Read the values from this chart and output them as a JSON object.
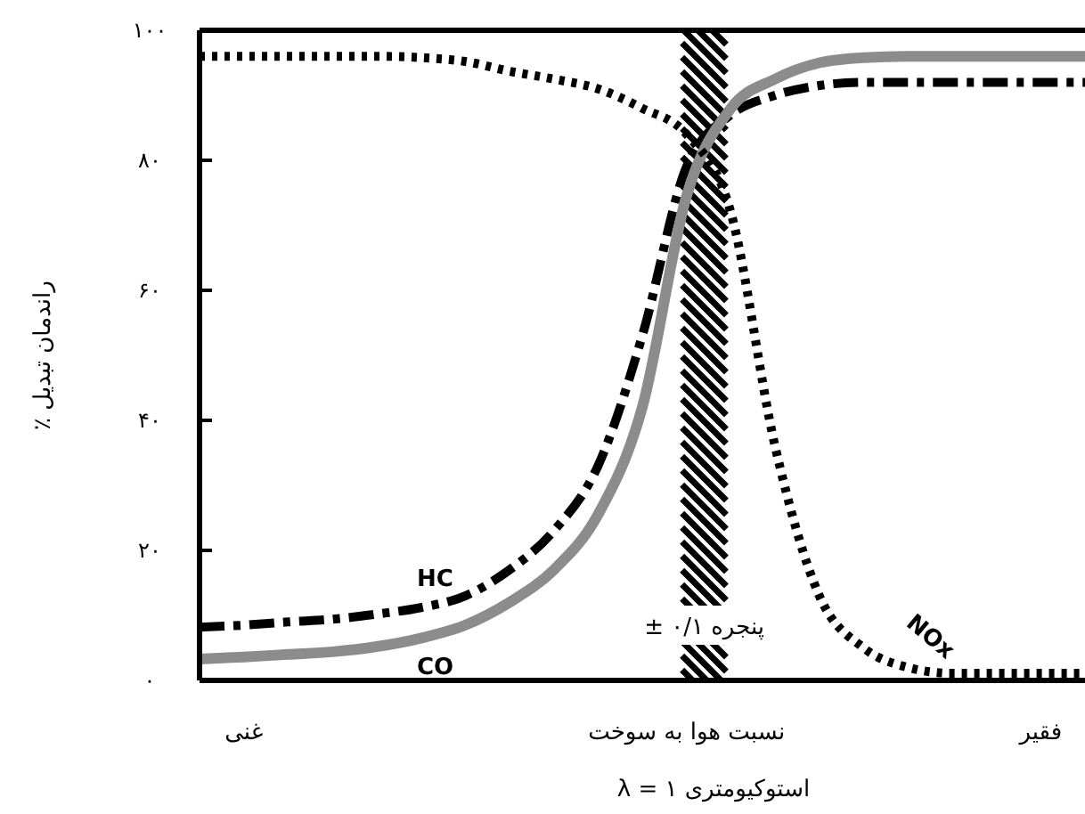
{
  "chart_data": {
    "type": "line",
    "xlabel": "استوکیومتری λ = ۱",
    "ylabel": "راندمان تبدیل ٪",
    "categories": [
      null,
      "غنی",
      null,
      null,
      null,
      null,
      null,
      null,
      null,
      null,
      null,
      "نسبت هوا به سوخت",
      null,
      null,
      null,
      null,
      null,
      null,
      null,
      "فقیر",
      null
    ],
    "ylim": [
      0,
      100
    ],
    "yticks": [
      {
        "value": 0,
        "label": "۰"
      },
      {
        "value": 20,
        "label": "۲۰"
      },
      {
        "value": 40,
        "label": "۴۰"
      },
      {
        "value": 60,
        "label": "۶۰"
      },
      {
        "value": 80,
        "label": "۸۰"
      },
      {
        "value": 100,
        "label": "۱۰۰"
      }
    ],
    "grid": false,
    "annotations": [
      "پنجره ۰/۱ ±"
    ],
    "series": [
      {
        "name": "HC",
        "color": "#000000",
        "line_style": "dashed",
        "values": [
          8.2,
          8.5,
          9,
          9.4,
          10.2,
          11.2,
          13,
          17,
          23,
          33,
          53,
          79,
          87,
          90,
          91.5,
          92,
          92,
          92,
          92,
          92,
          92
        ]
      },
      {
        "name": "CO",
        "color": "#8c8c8c",
        "line_style": "solid",
        "values": [
          3.3,
          3.6,
          4,
          4.4,
          5.2,
          6.5,
          8.5,
          12,
          17,
          25.5,
          42,
          74.5,
          88,
          92.5,
          95,
          95.8,
          96,
          96,
          96,
          96,
          96
        ]
      },
      {
        "name": "NOx",
        "color": "#000000",
        "line_style": "dotted",
        "values": [
          96,
          96,
          96,
          96,
          96,
          95.8,
          95.2,
          93.7,
          92.5,
          91,
          88,
          84,
          72,
          36,
          13,
          5,
          2,
          1.1,
          1.1,
          1.1,
          1.1
        ]
      }
    ]
  }
}
